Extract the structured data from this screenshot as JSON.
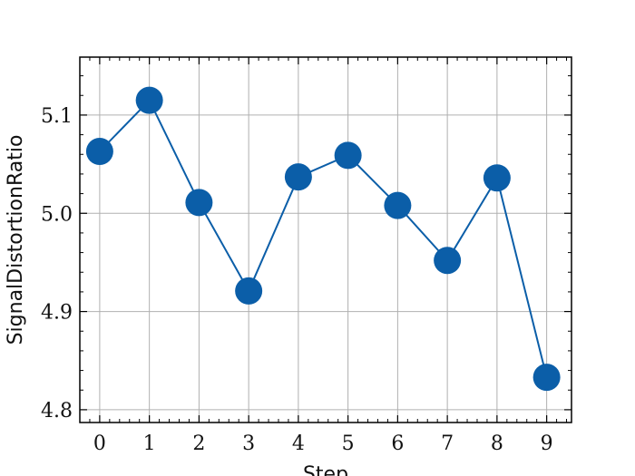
{
  "chart_data": {
    "type": "line",
    "title": "",
    "xlabel": "Step",
    "ylabel": "SignalDistortionRatio",
    "x": [
      0,
      1,
      2,
      3,
      4,
      5,
      6,
      7,
      8,
      9
    ],
    "series": [
      {
        "values": [
          5.063,
          5.115,
          5.011,
          4.921,
          5.037,
          5.059,
          5.008,
          4.952,
          5.036,
          4.833
        ]
      }
    ],
    "xlim": [
      -0.4,
      9.5
    ],
    "ylim": [
      4.787,
      5.159
    ],
    "xticks": [
      "0",
      "1",
      "2",
      "3",
      "4",
      "5",
      "6",
      "7",
      "8",
      "9"
    ],
    "yticks": [
      "4.8",
      "4.9",
      "5.0",
      "5.1"
    ],
    "grid": true,
    "legend": "none",
    "colors": {
      "series": "#0b5ea8",
      "grid": "#b0b0b0",
      "axis": "#000000"
    }
  }
}
